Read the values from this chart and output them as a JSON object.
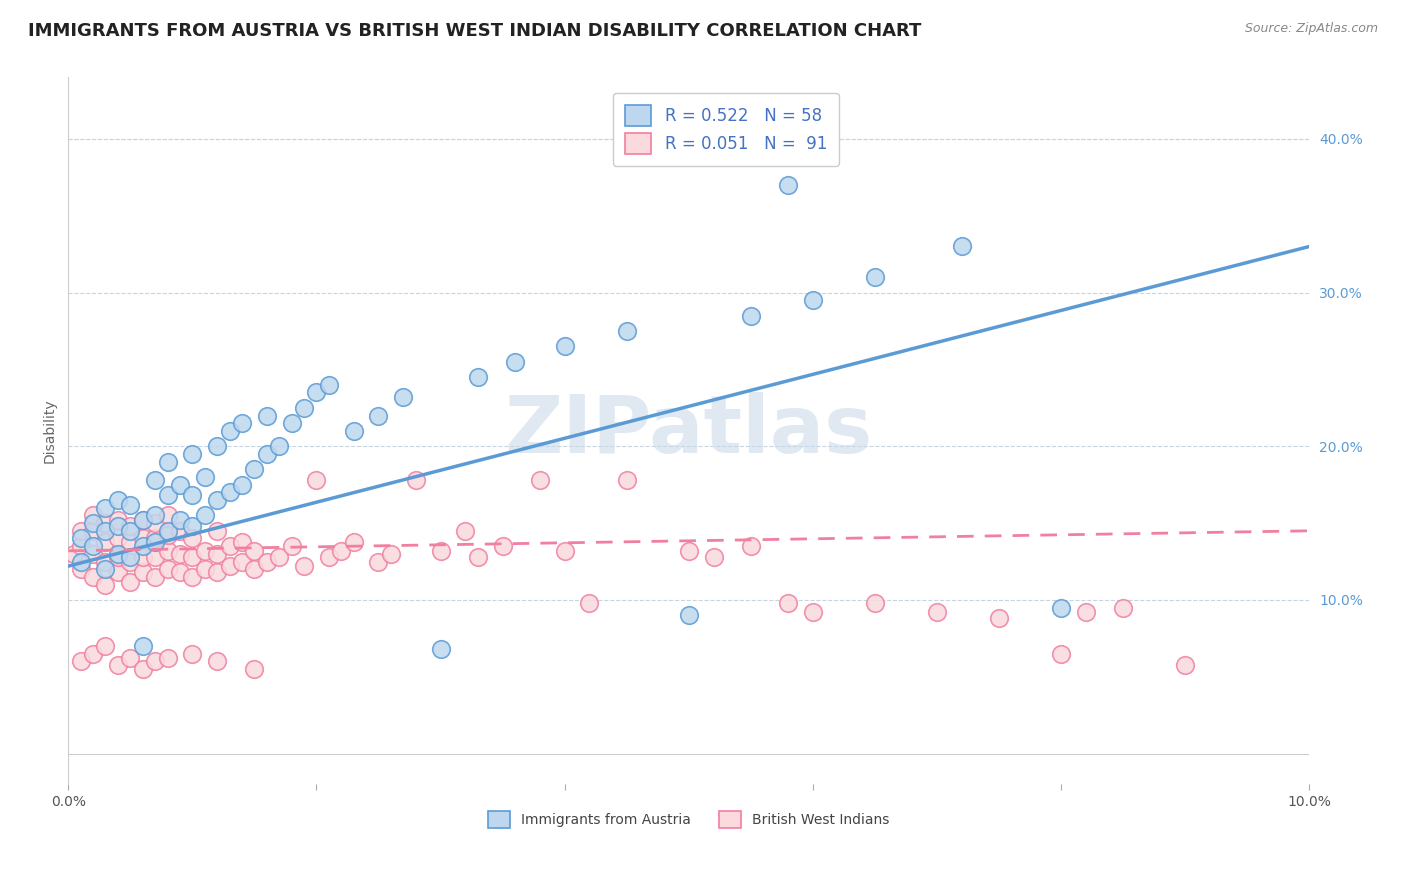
{
  "title": "IMMIGRANTS FROM AUSTRIA VS BRITISH WEST INDIAN DISABILITY CORRELATION CHART",
  "source": "Source: ZipAtlas.com",
  "ylabel": "Disability",
  "xlim": [
    0.0,
    0.1
  ],
  "ylim": [
    -0.02,
    0.44
  ],
  "xticks": [
    0.0,
    0.02,
    0.04,
    0.06,
    0.08,
    0.1
  ],
  "yticks_right": [
    0.1,
    0.2,
    0.3,
    0.4
  ],
  "ytick_right_labels": [
    "10.0%",
    "20.0%",
    "30.0%",
    "40.0%"
  ],
  "austria_color": "#5b9bd5",
  "austria_fill": "#bdd7ee",
  "bwi_color": "#f07fa0",
  "bwi_fill": "#fadadd",
  "legend_text_color": "#4472c4",
  "austria_R": 0.522,
  "austria_N": 58,
  "bwi_R": 0.051,
  "bwi_N": 91,
  "watermark": "ZIPatlas",
  "watermark_color": "#c8d8e8",
  "title_fontsize": 13,
  "axis_label_fontsize": 10,
  "tick_fontsize": 10,
  "background_color": "#ffffff",
  "grid_color": "#c8d4e0",
  "austria_scatter_x": [
    0.001,
    0.001,
    0.002,
    0.002,
    0.003,
    0.003,
    0.003,
    0.004,
    0.004,
    0.004,
    0.005,
    0.005,
    0.005,
    0.006,
    0.006,
    0.006,
    0.007,
    0.007,
    0.007,
    0.008,
    0.008,
    0.008,
    0.009,
    0.009,
    0.01,
    0.01,
    0.01,
    0.011,
    0.011,
    0.012,
    0.012,
    0.013,
    0.013,
    0.014,
    0.014,
    0.015,
    0.016,
    0.016,
    0.017,
    0.018,
    0.019,
    0.02,
    0.021,
    0.023,
    0.025,
    0.027,
    0.03,
    0.033,
    0.036,
    0.04,
    0.045,
    0.05,
    0.055,
    0.058,
    0.06,
    0.065,
    0.072,
    0.08
  ],
  "austria_scatter_y": [
    0.125,
    0.14,
    0.135,
    0.15,
    0.12,
    0.145,
    0.16,
    0.13,
    0.148,
    0.165,
    0.128,
    0.145,
    0.162,
    0.135,
    0.152,
    0.07,
    0.138,
    0.155,
    0.178,
    0.145,
    0.168,
    0.19,
    0.152,
    0.175,
    0.148,
    0.168,
    0.195,
    0.155,
    0.18,
    0.165,
    0.2,
    0.17,
    0.21,
    0.175,
    0.215,
    0.185,
    0.195,
    0.22,
    0.2,
    0.215,
    0.225,
    0.235,
    0.24,
    0.21,
    0.22,
    0.232,
    0.068,
    0.245,
    0.255,
    0.265,
    0.275,
    0.09,
    0.285,
    0.37,
    0.295,
    0.31,
    0.33,
    0.095
  ],
  "bwi_scatter_x": [
    0.0005,
    0.001,
    0.001,
    0.001,
    0.002,
    0.002,
    0.002,
    0.002,
    0.003,
    0.003,
    0.003,
    0.003,
    0.004,
    0.004,
    0.004,
    0.004,
    0.005,
    0.005,
    0.005,
    0.005,
    0.006,
    0.006,
    0.006,
    0.006,
    0.007,
    0.007,
    0.007,
    0.007,
    0.008,
    0.008,
    0.008,
    0.008,
    0.009,
    0.009,
    0.009,
    0.01,
    0.01,
    0.01,
    0.011,
    0.011,
    0.012,
    0.012,
    0.012,
    0.013,
    0.013,
    0.014,
    0.014,
    0.015,
    0.015,
    0.016,
    0.017,
    0.018,
    0.019,
    0.02,
    0.021,
    0.022,
    0.023,
    0.025,
    0.026,
    0.028,
    0.03,
    0.032,
    0.033,
    0.035,
    0.038,
    0.04,
    0.042,
    0.045,
    0.05,
    0.052,
    0.055,
    0.058,
    0.06,
    0.065,
    0.07,
    0.075,
    0.08,
    0.082,
    0.085,
    0.09,
    0.001,
    0.002,
    0.003,
    0.004,
    0.005,
    0.006,
    0.007,
    0.008,
    0.01,
    0.012,
    0.015
  ],
  "bwi_scatter_y": [
    0.13,
    0.12,
    0.135,
    0.145,
    0.115,
    0.13,
    0.145,
    0.155,
    0.11,
    0.125,
    0.138,
    0.15,
    0.118,
    0.128,
    0.14,
    0.152,
    0.112,
    0.125,
    0.138,
    0.148,
    0.118,
    0.128,
    0.14,
    0.152,
    0.115,
    0.128,
    0.14,
    0.15,
    0.12,
    0.132,
    0.142,
    0.155,
    0.118,
    0.13,
    0.145,
    0.115,
    0.128,
    0.14,
    0.12,
    0.132,
    0.118,
    0.13,
    0.145,
    0.122,
    0.135,
    0.125,
    0.138,
    0.12,
    0.132,
    0.125,
    0.128,
    0.135,
    0.122,
    0.178,
    0.128,
    0.132,
    0.138,
    0.125,
    0.13,
    0.178,
    0.132,
    0.145,
    0.128,
    0.135,
    0.178,
    0.132,
    0.098,
    0.178,
    0.132,
    0.128,
    0.135,
    0.098,
    0.092,
    0.098,
    0.092,
    0.088,
    0.065,
    0.092,
    0.095,
    0.058,
    0.06,
    0.065,
    0.07,
    0.058,
    0.062,
    0.055,
    0.06,
    0.062,
    0.065,
    0.06,
    0.055
  ],
  "austria_trendline_x": [
    0.0,
    0.1
  ],
  "austria_trendline_y": [
    0.122,
    0.33
  ],
  "bwi_trendline_x": [
    0.0,
    0.1
  ],
  "bwi_trendline_y": [
    0.132,
    0.145
  ]
}
